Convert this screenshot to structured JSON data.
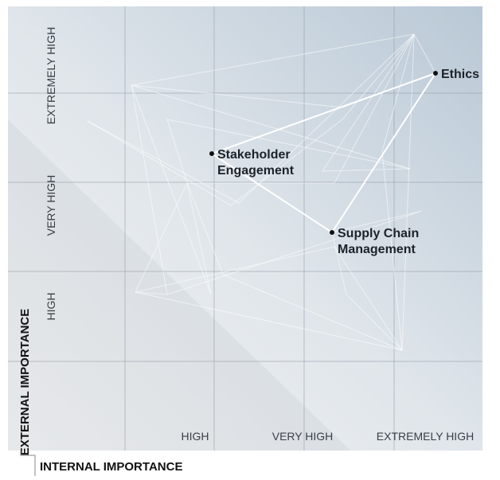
{
  "axes": {
    "y_title": "EXTERNAL IMPORTANCE",
    "x_title": "INTERNAL IMPORTANCE",
    "y_levels": [
      "EXTREMELY HIGH",
      "VERY HIGH",
      "HIGH"
    ],
    "x_levels": [
      "HIGH",
      "VERY HIGH",
      "EXTREMELY HIGH"
    ]
  },
  "nodes": [
    {
      "label": [
        "Ethics"
      ]
    },
    {
      "label": [
        "Stakeholder",
        "Engagement"
      ]
    },
    {
      "label": [
        "Supply Chain",
        "Management"
      ]
    }
  ]
}
